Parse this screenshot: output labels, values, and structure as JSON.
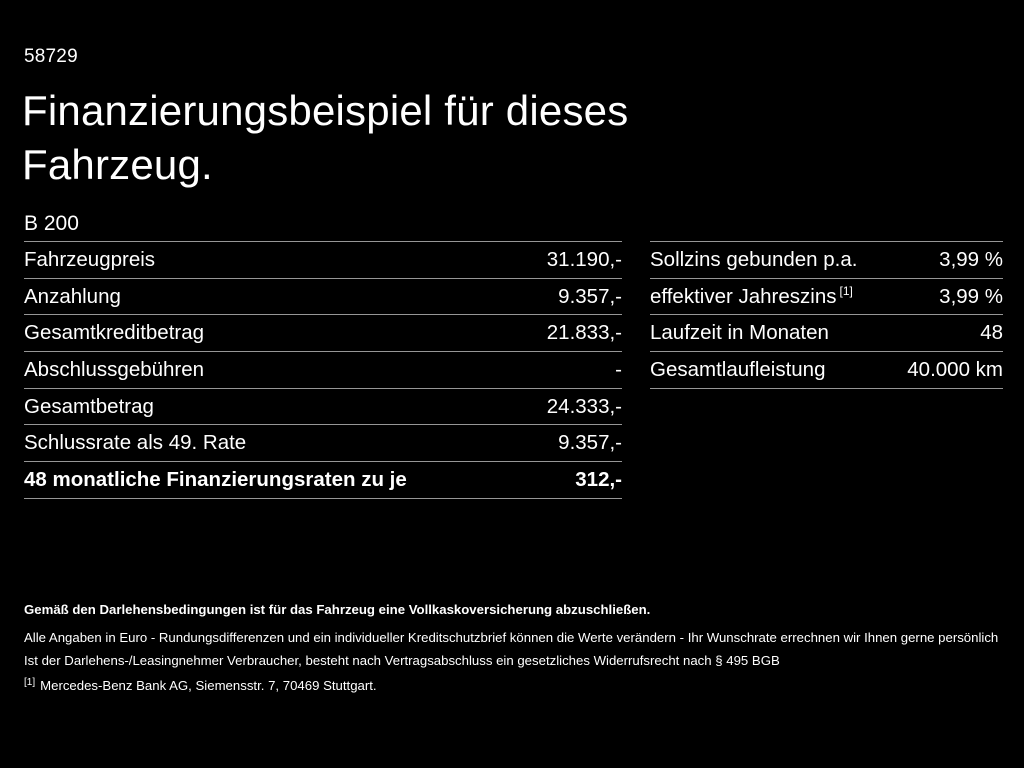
{
  "page": {
    "vehicle_id": "58729",
    "title_line1": "Finanzierungsbeispiel für dieses",
    "title_line2": "Fahrzeug.",
    "model": "B 200"
  },
  "left_table": {
    "rows": [
      {
        "label": "Fahrzeugpreis",
        "value": "31.190,-"
      },
      {
        "label": "Anzahlung",
        "value": "9.357,-"
      },
      {
        "label": "Gesamtkreditbetrag",
        "value": "21.833,-"
      },
      {
        "label": "Abschlussgebühren",
        "value": "-"
      },
      {
        "label": "Gesamtbetrag",
        "value": "24.333,-"
      },
      {
        "label": "Schlussrate als 49. Rate",
        "value": "9.357,-"
      },
      {
        "label": "48 monatliche Finanzierungsraten zu je",
        "value": "312,-"
      }
    ]
  },
  "right_table": {
    "rows": [
      {
        "label": "Sollzins gebunden p.a.",
        "value": "3,99 %"
      },
      {
        "label": "effektiver Jahreszins",
        "sup": "[1]",
        "value": "3,99 %"
      },
      {
        "label": "Laufzeit in Monaten",
        "value": "48"
      },
      {
        "label": "Gesamtlaufleistung",
        "value": "40.000 km"
      }
    ]
  },
  "footer": {
    "line1": "Gemäß den Darlehensbedingungen ist für das Fahrzeug eine Vollkaskoversicherung abzuschließen.",
    "line2": "Alle Angaben in Euro - Rundungsdifferenzen und ein individueller Kreditschutzbrief können die Werte verändern - Ihr Wunschrate errechnen wir Ihnen gerne persönlich",
    "line3": "Ist der Darlehens-/Leasingnehmer Verbraucher, besteht nach Vertragsabschluss ein gesetzliches Widerrufsrecht nach § 495 BGB",
    "footnote_marker": "[1]",
    "footnote_text": "Mercedes-Benz Bank AG, Siemensstr. 7, 70469 Stuttgart."
  },
  "colors": {
    "background": "#000000",
    "text": "#ffffff",
    "divider": "#969696"
  }
}
